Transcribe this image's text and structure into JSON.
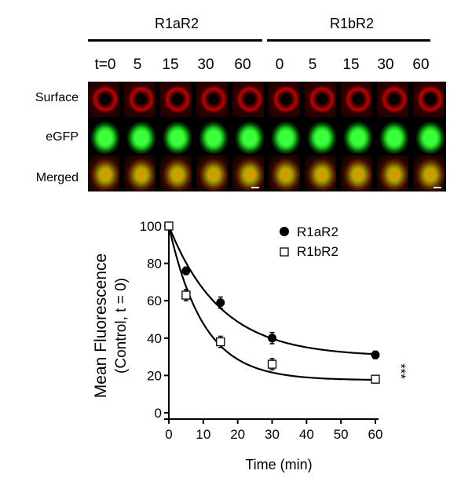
{
  "figure": {
    "groups": [
      {
        "label": "R1aR2",
        "times": [
          "t=0",
          "5",
          "15",
          "30",
          "60"
        ]
      },
      {
        "label": "R1bR2",
        "times": [
          "0",
          "5",
          "15",
          "30",
          "60"
        ]
      }
    ],
    "row_labels": [
      "Surface",
      "eGFP",
      "Merged"
    ],
    "colors": {
      "surface": "#c40000",
      "egfp": "#2be02b",
      "merged": "#b09000"
    }
  },
  "chart_data": {
    "type": "scatter",
    "xlabel": "Time (min)",
    "ylabel_line1": "Mean Fluorescence",
    "ylabel_line2": "(Control, t = 0)",
    "xlim": [
      0,
      60
    ],
    "ylim": [
      0,
      100
    ],
    "xticks": [
      "0",
      "10",
      "20",
      "30",
      "40",
      "50",
      "60"
    ],
    "yticks": [
      "0",
      "20",
      "40",
      "60",
      "80",
      "100"
    ],
    "x": [
      0,
      5,
      15,
      30,
      60
    ],
    "significance": "***",
    "legend_position": "top-right",
    "series": [
      {
        "name": "R1aR2",
        "marker": "filled-circle",
        "values": [
          100,
          76,
          59,
          40,
          31
        ],
        "errors": [
          2,
          2,
          3,
          3,
          2
        ]
      },
      {
        "name": "R1bR2",
        "marker": "open-square",
        "values": [
          100,
          63,
          38,
          26,
          18
        ],
        "errors": [
          2,
          3,
          3,
          3,
          2
        ]
      }
    ]
  }
}
